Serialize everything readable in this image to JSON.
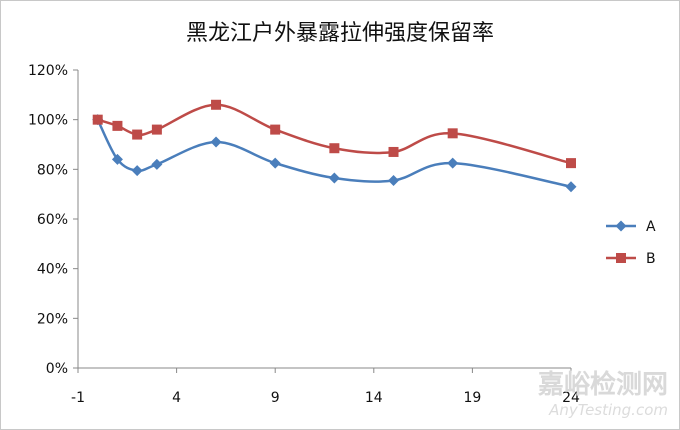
{
  "chart_data": {
    "type": "line",
    "title": "黑龙江户外暴露拉伸强度保留率",
    "xlabel": "",
    "ylabel": "",
    "xlim": [
      -1,
      24
    ],
    "ylim": [
      0,
      120
    ],
    "x_ticks": [
      -1,
      4,
      9,
      14,
      19,
      24
    ],
    "x_tick_labels": [
      "-1",
      "4",
      "9",
      "14",
      "19",
      "24"
    ],
    "y_ticks": [
      0,
      20,
      40,
      60,
      80,
      100,
      120
    ],
    "y_tick_labels": [
      "0%",
      "20%",
      "40%",
      "60%",
      "80%",
      "100%",
      "120%"
    ],
    "legend_position": "right",
    "smooth": true,
    "series": [
      {
        "name": "A",
        "color": "#4a7ebb",
        "marker": "diamond",
        "x": [
          0,
          1,
          2,
          3,
          6,
          9,
          12,
          15,
          18,
          24
        ],
        "y": [
          100,
          84,
          79.5,
          82,
          91,
          82.5,
          76.5,
          75.5,
          82.5,
          73
        ]
      },
      {
        "name": "B",
        "color": "#be4b48",
        "marker": "square",
        "x": [
          0,
          1,
          2,
          3,
          6,
          9,
          12,
          15,
          18,
          24
        ],
        "y": [
          100,
          97.5,
          94,
          96,
          106,
          96,
          88.5,
          87,
          94.5,
          82.5
        ]
      }
    ]
  },
  "watermark": {
    "cn": "嘉峪检测网",
    "en": "AnyTesting.com"
  }
}
